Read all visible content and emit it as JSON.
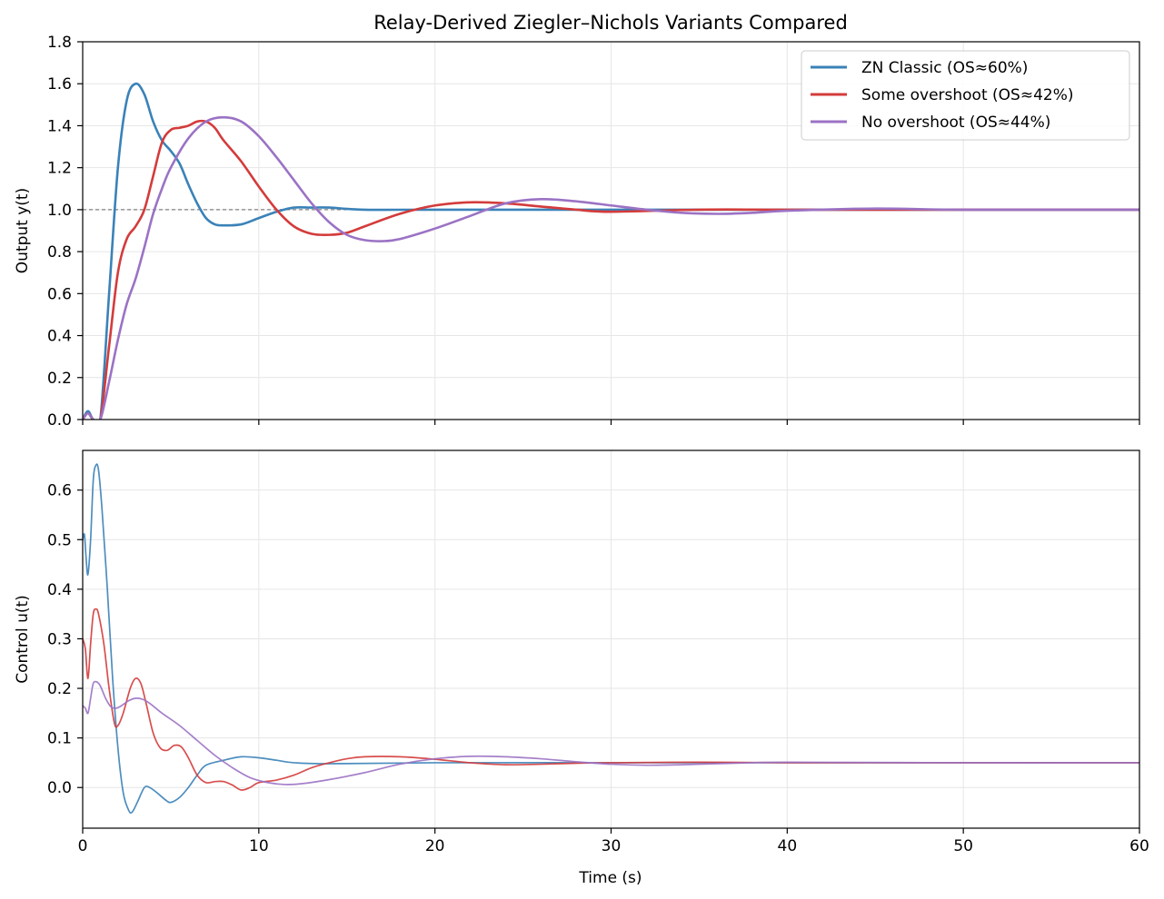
{
  "chart_data": [
    {
      "type": "line",
      "title": "Relay-Derived Ziegler–Nichols Variants Compared",
      "ylabel": "Output y(t)",
      "xlabel": "",
      "xlim": [
        0,
        60
      ],
      "ylim": [
        0,
        1.8
      ],
      "xticks": [
        0,
        10,
        20,
        30,
        40,
        50,
        60
      ],
      "yticks": [
        "0.0",
        "0.2",
        "0.4",
        "0.6",
        "0.8",
        "1.0",
        "1.2",
        "1.4",
        "1.6",
        "1.8"
      ],
      "grid": true,
      "legend": "top-right",
      "reference_line": {
        "y": 1.0,
        "style": "dashed",
        "color": "#808080"
      },
      "series": [
        {
          "name": "ZN Classic (OS≈60%)",
          "color": "#3a82b8",
          "points": [
            [
              0,
              0
            ],
            [
              0.3,
              0.04
            ],
            [
              0.6,
              0
            ],
            [
              1.0,
              0
            ],
            [
              1.5,
              0.6
            ],
            [
              2.0,
              1.2
            ],
            [
              2.5,
              1.52
            ],
            [
              3.0,
              1.6
            ],
            [
              3.5,
              1.55
            ],
            [
              4.0,
              1.42
            ],
            [
              4.5,
              1.33
            ],
            [
              5.0,
              1.28
            ],
            [
              5.5,
              1.22
            ],
            [
              6.0,
              1.12
            ],
            [
              6.5,
              1.03
            ],
            [
              7.0,
              0.96
            ],
            [
              7.5,
              0.93
            ],
            [
              8.0,
              0.925
            ],
            [
              9.0,
              0.93
            ],
            [
              10,
              0.96
            ],
            [
              11,
              0.99
            ],
            [
              12,
              1.01
            ],
            [
              13,
              1.01
            ],
            [
              14,
              1.01
            ],
            [
              16,
              1.0
            ],
            [
              20,
              1.0
            ],
            [
              30,
              1.0
            ],
            [
              40,
              1.0
            ],
            [
              50,
              1.0
            ],
            [
              60,
              1.0
            ]
          ]
        },
        {
          "name": "Some overshoot (OS≈42%)",
          "color": "#d43b3b",
          "points": [
            [
              0,
              0
            ],
            [
              0.3,
              0.03
            ],
            [
              0.6,
              0
            ],
            [
              1.0,
              0
            ],
            [
              1.5,
              0.35
            ],
            [
              2.0,
              0.7
            ],
            [
              2.5,
              0.86
            ],
            [
              3.0,
              0.92
            ],
            [
              3.5,
              1.0
            ],
            [
              4.0,
              1.16
            ],
            [
              4.5,
              1.32
            ],
            [
              5.0,
              1.38
            ],
            [
              5.5,
              1.39
            ],
            [
              6.0,
              1.4
            ],
            [
              6.5,
              1.42
            ],
            [
              7.0,
              1.42
            ],
            [
              7.5,
              1.39
            ],
            [
              8.0,
              1.33
            ],
            [
              9.0,
              1.23
            ],
            [
              10,
              1.11
            ],
            [
              11,
              1.0
            ],
            [
              12,
              0.92
            ],
            [
              13,
              0.885
            ],
            [
              14,
              0.88
            ],
            [
              15,
              0.89
            ],
            [
              16,
              0.92
            ],
            [
              18,
              0.98
            ],
            [
              20,
              1.02
            ],
            [
              22,
              1.035
            ],
            [
              24,
              1.03
            ],
            [
              26,
              1.015
            ],
            [
              28,
              1.0
            ],
            [
              30,
              0.99
            ],
            [
              35,
              1.0
            ],
            [
              40,
              1.0
            ],
            [
              50,
              1.0
            ],
            [
              60,
              1.0
            ]
          ]
        },
        {
          "name": "No overshoot (OS≈44%)",
          "color": "#9b72c4",
          "points": [
            [
              0,
              0
            ],
            [
              0.3,
              0.03
            ],
            [
              0.6,
              0
            ],
            [
              1.0,
              0
            ],
            [
              1.5,
              0.18
            ],
            [
              2.0,
              0.38
            ],
            [
              2.5,
              0.55
            ],
            [
              3.0,
              0.67
            ],
            [
              3.5,
              0.82
            ],
            [
              4.0,
              0.98
            ],
            [
              4.5,
              1.1
            ],
            [
              5.0,
              1.2
            ],
            [
              6.0,
              1.34
            ],
            [
              7.0,
              1.42
            ],
            [
              8.0,
              1.44
            ],
            [
              9.0,
              1.42
            ],
            [
              10,
              1.35
            ],
            [
              11,
              1.25
            ],
            [
              12,
              1.14
            ],
            [
              13,
              1.03
            ],
            [
              14,
              0.94
            ],
            [
              15,
              0.88
            ],
            [
              16,
              0.855
            ],
            [
              17,
              0.85
            ],
            [
              18,
              0.86
            ],
            [
              20,
              0.91
            ],
            [
              22,
              0.97
            ],
            [
              24,
              1.03
            ],
            [
              26,
              1.05
            ],
            [
              28,
              1.04
            ],
            [
              30,
              1.02
            ],
            [
              32,
              1.0
            ],
            [
              34,
              0.985
            ],
            [
              36,
              0.98
            ],
            [
              38,
              0.985
            ],
            [
              40,
              0.995
            ],
            [
              45,
              1.005
            ],
            [
              50,
              1.0
            ],
            [
              60,
              1.0
            ]
          ]
        }
      ]
    },
    {
      "type": "line",
      "title": "",
      "ylabel": "Control u(t)",
      "xlabel": "Time (s)",
      "xlim": [
        0,
        60
      ],
      "ylim": [
        -0.082,
        0.68
      ],
      "xticks": [
        0,
        10,
        20,
        30,
        40,
        50,
        60
      ],
      "yticks": [
        "0.0",
        "0.1",
        "0.2",
        "0.3",
        "0.4",
        "0.5",
        "0.6"
      ],
      "grid": true,
      "series": [
        {
          "name": "ZN Classic (OS≈60%)",
          "color": "#3a82b8",
          "points": [
            [
              0,
              0.5
            ],
            [
              0.1,
              0.51
            ],
            [
              0.2,
              0.46
            ],
            [
              0.3,
              0.43
            ],
            [
              0.45,
              0.5
            ],
            [
              0.6,
              0.62
            ],
            [
              0.75,
              0.65
            ],
            [
              0.9,
              0.64
            ],
            [
              1.1,
              0.56
            ],
            [
              1.4,
              0.4
            ],
            [
              1.7,
              0.22
            ],
            [
              2.0,
              0.08
            ],
            [
              2.3,
              -0.01
            ],
            [
              2.6,
              -0.045
            ],
            [
              2.8,
              -0.05
            ],
            [
              3.1,
              -0.03
            ],
            [
              3.5,
              0.0
            ],
            [
              3.8,
              0.0
            ],
            [
              4.2,
              -0.01
            ],
            [
              4.7,
              -0.025
            ],
            [
              5.0,
              -0.03
            ],
            [
              5.5,
              -0.02
            ],
            [
              6.0,
              0.0
            ],
            [
              6.5,
              0.025
            ],
            [
              7.0,
              0.045
            ],
            [
              8.0,
              0.055
            ],
            [
              9.0,
              0.062
            ],
            [
              10,
              0.06
            ],
            [
              11,
              0.055
            ],
            [
              12,
              0.05
            ],
            [
              14,
              0.048
            ],
            [
              20,
              0.05
            ],
            [
              30,
              0.05
            ],
            [
              40,
              0.05
            ],
            [
              50,
              0.05
            ],
            [
              60,
              0.05
            ]
          ]
        },
        {
          "name": "Some overshoot (OS≈42%)",
          "color": "#d43b3b",
          "points": [
            [
              0,
              0.3
            ],
            [
              0.15,
              0.28
            ],
            [
              0.3,
              0.22
            ],
            [
              0.45,
              0.29
            ],
            [
              0.6,
              0.35
            ],
            [
              0.75,
              0.36
            ],
            [
              0.9,
              0.35
            ],
            [
              1.2,
              0.29
            ],
            [
              1.5,
              0.2
            ],
            [
              1.8,
              0.13
            ],
            [
              2.0,
              0.125
            ],
            [
              2.3,
              0.15
            ],
            [
              2.7,
              0.2
            ],
            [
              3.0,
              0.22
            ],
            [
              3.3,
              0.21
            ],
            [
              3.6,
              0.17
            ],
            [
              4.0,
              0.11
            ],
            [
              4.4,
              0.08
            ],
            [
              4.8,
              0.075
            ],
            [
              5.2,
              0.085
            ],
            [
              5.6,
              0.082
            ],
            [
              6.0,
              0.06
            ],
            [
              6.5,
              0.025
            ],
            [
              7.0,
              0.01
            ],
            [
              7.5,
              0.012
            ],
            [
              8.0,
              0.012
            ],
            [
              8.5,
              0.005
            ],
            [
              9.0,
              -0.005
            ],
            [
              9.5,
              0.0
            ],
            [
              10,
              0.01
            ],
            [
              11,
              0.015
            ],
            [
              12,
              0.025
            ],
            [
              13,
              0.04
            ],
            [
              14,
              0.05
            ],
            [
              15,
              0.058
            ],
            [
              16,
              0.062
            ],
            [
              18,
              0.062
            ],
            [
              20,
              0.057
            ],
            [
              22,
              0.05
            ],
            [
              24,
              0.046
            ],
            [
              26,
              0.047
            ],
            [
              28,
              0.049
            ],
            [
              30,
              0.05
            ],
            [
              35,
              0.051
            ],
            [
              40,
              0.05
            ],
            [
              50,
              0.05
            ],
            [
              60,
              0.05
            ]
          ]
        },
        {
          "name": "No overshoot (OS≈44%)",
          "color": "#9b72c4",
          "points": [
            [
              0,
              0.165
            ],
            [
              0.15,
              0.16
            ],
            [
              0.3,
              0.15
            ],
            [
              0.45,
              0.18
            ],
            [
              0.6,
              0.21
            ],
            [
              0.8,
              0.213
            ],
            [
              1.0,
              0.205
            ],
            [
              1.3,
              0.18
            ],
            [
              1.6,
              0.163
            ],
            [
              1.9,
              0.16
            ],
            [
              2.2,
              0.165
            ],
            [
              2.6,
              0.175
            ],
            [
              3.0,
              0.18
            ],
            [
              3.4,
              0.178
            ],
            [
              3.8,
              0.17
            ],
            [
              4.5,
              0.15
            ],
            [
              5.5,
              0.125
            ],
            [
              6.5,
              0.095
            ],
            [
              7.5,
              0.065
            ],
            [
              8.5,
              0.04
            ],
            [
              9.5,
              0.02
            ],
            [
              10.5,
              0.01
            ],
            [
              11.5,
              0.006
            ],
            [
              12.5,
              0.008
            ],
            [
              14,
              0.016
            ],
            [
              16,
              0.03
            ],
            [
              18,
              0.047
            ],
            [
              20,
              0.058
            ],
            [
              22,
              0.063
            ],
            [
              24,
              0.062
            ],
            [
              26,
              0.058
            ],
            [
              28,
              0.052
            ],
            [
              30,
              0.047
            ],
            [
              32,
              0.045
            ],
            [
              34,
              0.046
            ],
            [
              36,
              0.048
            ],
            [
              38,
              0.05
            ],
            [
              40,
              0.051
            ],
            [
              50,
              0.05
            ],
            [
              60,
              0.05
            ]
          ]
        }
      ]
    }
  ]
}
